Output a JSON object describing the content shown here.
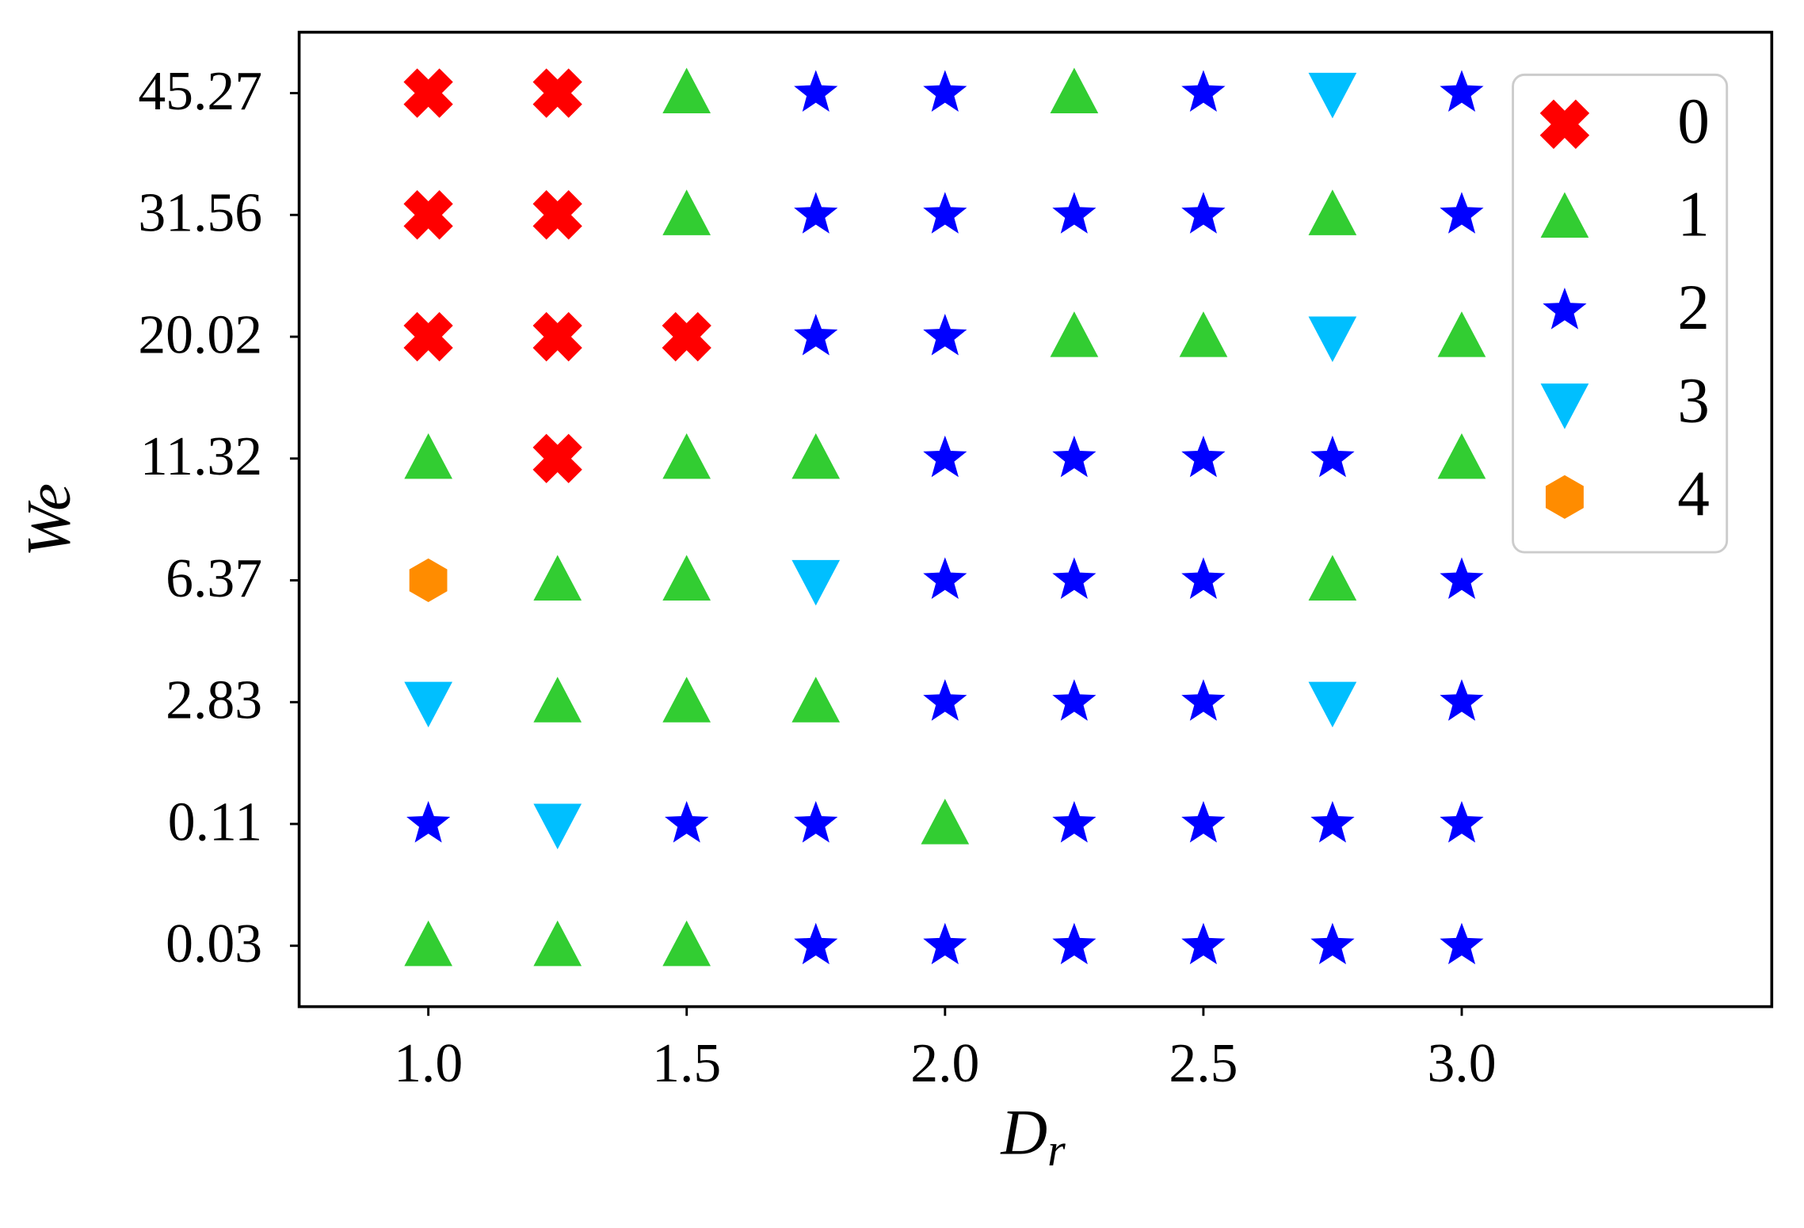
{
  "chart_data": {
    "type": "scatter",
    "xlabel": "D",
    "xlabel_subscript": "r",
    "ylabel": "We",
    "xlim": [
      0.75,
      3.6
    ],
    "xticks": [
      {
        "value": 1,
        "label": "1.0"
      },
      {
        "value": 1.5,
        "label": "1.5"
      },
      {
        "value": 2,
        "label": "2.0"
      },
      {
        "value": 2.5,
        "label": "2.5"
      },
      {
        "value": 3,
        "label": "3.0"
      }
    ],
    "y_categories": [
      "0.03",
      "0.11",
      "2.83",
      "6.37",
      "11.32",
      "20.02",
      "31.56",
      "45.27"
    ],
    "legend": "upper right",
    "series": [
      {
        "name": "0",
        "color": "#ff0000",
        "marker": "X",
        "x": [
          1,
          1.25,
          1,
          1.25,
          1,
          1.25,
          1.5,
          1.25
        ],
        "y": [
          "45.27",
          "45.27",
          "31.56",
          "31.56",
          "20.02",
          "20.02",
          "20.02",
          "11.32"
        ]
      },
      {
        "name": "1",
        "color": "#32cd32",
        "marker": "^",
        "x": [
          1.5,
          2.25,
          1.5,
          2.75,
          2.25,
          2.5,
          3,
          1,
          1.5,
          1.75,
          3,
          1.25,
          1.5,
          2.75,
          1.25,
          1.5,
          1.75,
          2,
          1,
          1.25,
          1.5
        ],
        "y": [
          "45.27",
          "45.27",
          "31.56",
          "31.56",
          "20.02",
          "20.02",
          "20.02",
          "11.32",
          "11.32",
          "11.32",
          "11.32",
          "6.37",
          "6.37",
          "6.37",
          "2.83",
          "2.83",
          "2.83",
          "0.11",
          "0.03",
          "0.03",
          "0.03"
        ]
      },
      {
        "name": "2",
        "color": "#0000ff",
        "marker": "*",
        "x": [
          1.75,
          2,
          2.5,
          3,
          1.75,
          2,
          2.25,
          2.5,
          3,
          1.75,
          2,
          2,
          2.25,
          2.5,
          2.75,
          2,
          2.25,
          2.5,
          3,
          2,
          2.25,
          2.5,
          3,
          1,
          1.5,
          1.75,
          2.25,
          2.5,
          2.75,
          3,
          1.75,
          2,
          2.25,
          2.5,
          2.75,
          3
        ],
        "y": [
          "45.27",
          "45.27",
          "45.27",
          "45.27",
          "31.56",
          "31.56",
          "31.56",
          "31.56",
          "31.56",
          "20.02",
          "20.02",
          "11.32",
          "11.32",
          "11.32",
          "11.32",
          "6.37",
          "6.37",
          "6.37",
          "6.37",
          "2.83",
          "2.83",
          "2.83",
          "2.83",
          "0.11",
          "0.11",
          "0.11",
          "0.11",
          "0.11",
          "0.11",
          "0.11",
          "0.03",
          "0.03",
          "0.03",
          "0.03",
          "0.03",
          "0.03"
        ]
      },
      {
        "name": "3",
        "color": "#00bfff",
        "marker": "v",
        "x": [
          2.75,
          2.75,
          1.75,
          1,
          2.75,
          1.25
        ],
        "y": [
          "45.27",
          "20.02",
          "6.37",
          "2.83",
          "2.83",
          "0.11"
        ]
      },
      {
        "name": "4",
        "color": "#ff8c00",
        "marker": "h",
        "x": [
          1
        ],
        "y": [
          "6.37"
        ]
      }
    ]
  }
}
